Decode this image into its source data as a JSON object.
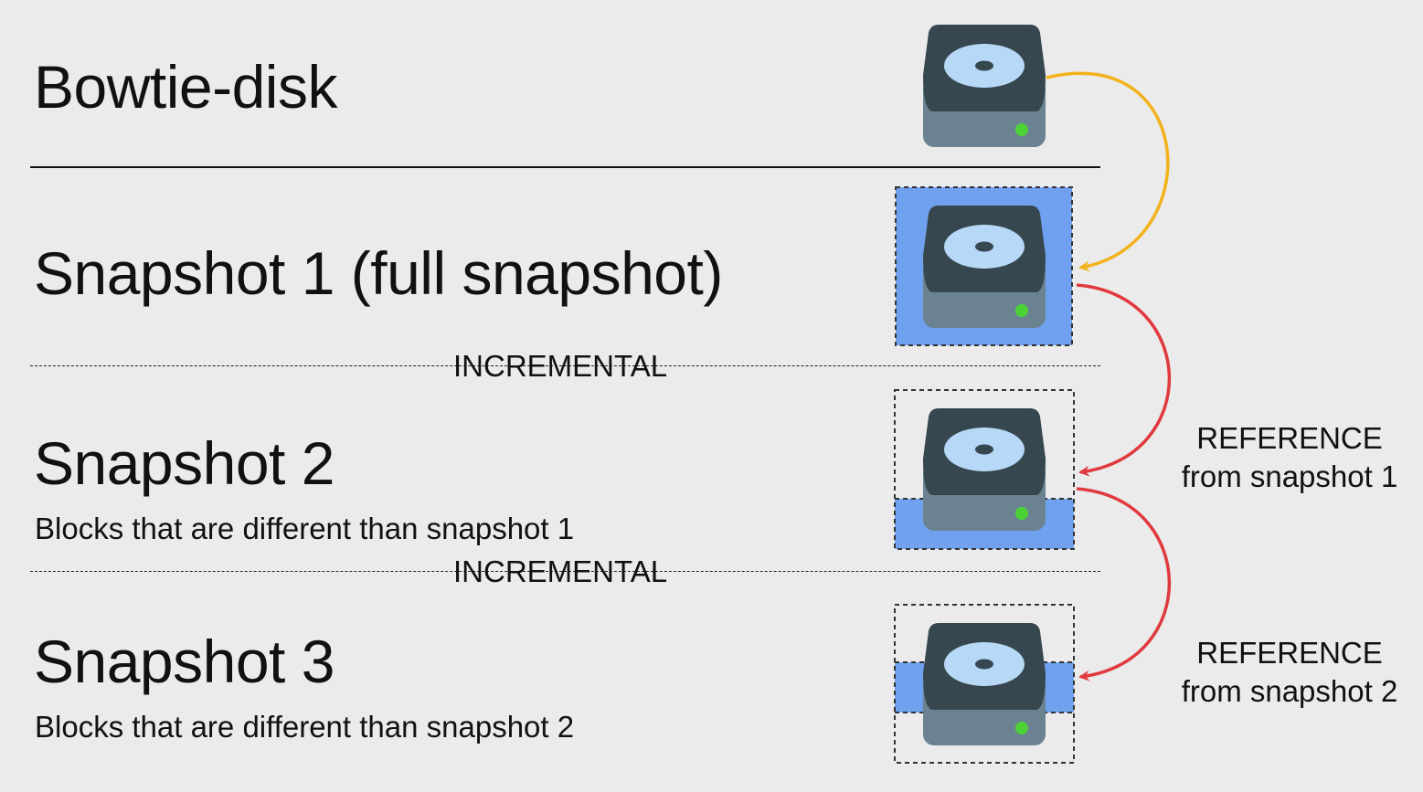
{
  "disk": {
    "title": "Bowtie-disk",
    "icon": "hard-drive-icon"
  },
  "snapshots": [
    {
      "title": "Snapshot 1 (full snapshot)",
      "description": "",
      "fill": "full"
    },
    {
      "title": "Snapshot 2",
      "description": "Blocks that are different than snapshot 1",
      "fill": "partial-bottom"
    },
    {
      "title": "Snapshot 3",
      "description": "Blocks that are different than snapshot 2",
      "fill": "partial-middle"
    }
  ],
  "separators": {
    "incremental_1": "INCREMENTAL",
    "incremental_2": "INCREMENTAL"
  },
  "references": [
    {
      "line1": "REFERENCE",
      "line2": "from snapshot 1"
    },
    {
      "line1": "REFERENCE",
      "line2": "from snapshot 2"
    }
  ],
  "colors": {
    "background": "#ebebeb",
    "snapshot_fill": "#6fa1ef",
    "disk_top": "#37474f",
    "disk_base": "#6b8390",
    "platter": "#b7d9f7",
    "led": "#4cd137",
    "arrow_copy": "#f2b21c",
    "arrow_reference": "#e0393e"
  }
}
